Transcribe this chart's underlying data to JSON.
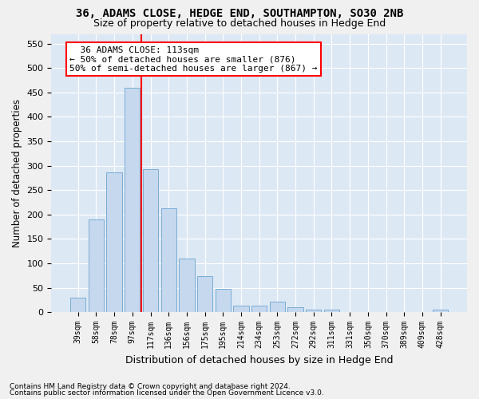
{
  "title": "36, ADAMS CLOSE, HEDGE END, SOUTHAMPTON, SO30 2NB",
  "subtitle": "Size of property relative to detached houses in Hedge End",
  "xlabel": "Distribution of detached houses by size in Hedge End",
  "ylabel": "Number of detached properties",
  "categories": [
    "39sqm",
    "58sqm",
    "78sqm",
    "97sqm",
    "117sqm",
    "136sqm",
    "156sqm",
    "175sqm",
    "195sqm",
    "214sqm",
    "234sqm",
    "253sqm",
    "272sqm",
    "292sqm",
    "311sqm",
    "331sqm",
    "350sqm",
    "370sqm",
    "389sqm",
    "409sqm",
    "428sqm"
  ],
  "values": [
    30,
    190,
    287,
    460,
    293,
    213,
    110,
    74,
    47,
    13,
    13,
    21,
    10,
    5,
    5,
    0,
    0,
    0,
    0,
    0,
    5
  ],
  "bar_color": "#c5d8ee",
  "bar_edge_color": "#7aadd4",
  "background_color": "#dde8f5",
  "grid_color": "#ffffff",
  "red_line_x": 3.5,
  "annotation_title": "36 ADAMS CLOSE: 113sqm",
  "annotation_line2": "← 50% of detached houses are smaller (876)",
  "annotation_line3": "50% of semi-detached houses are larger (867) →",
  "ylim": [
    0,
    570
  ],
  "yticks": [
    0,
    50,
    100,
    150,
    200,
    250,
    300,
    350,
    400,
    450,
    500,
    550
  ],
  "footer1": "Contains HM Land Registry data © Crown copyright and database right 2024.",
  "footer2": "Contains public sector information licensed under the Open Government Licence v3.0."
}
